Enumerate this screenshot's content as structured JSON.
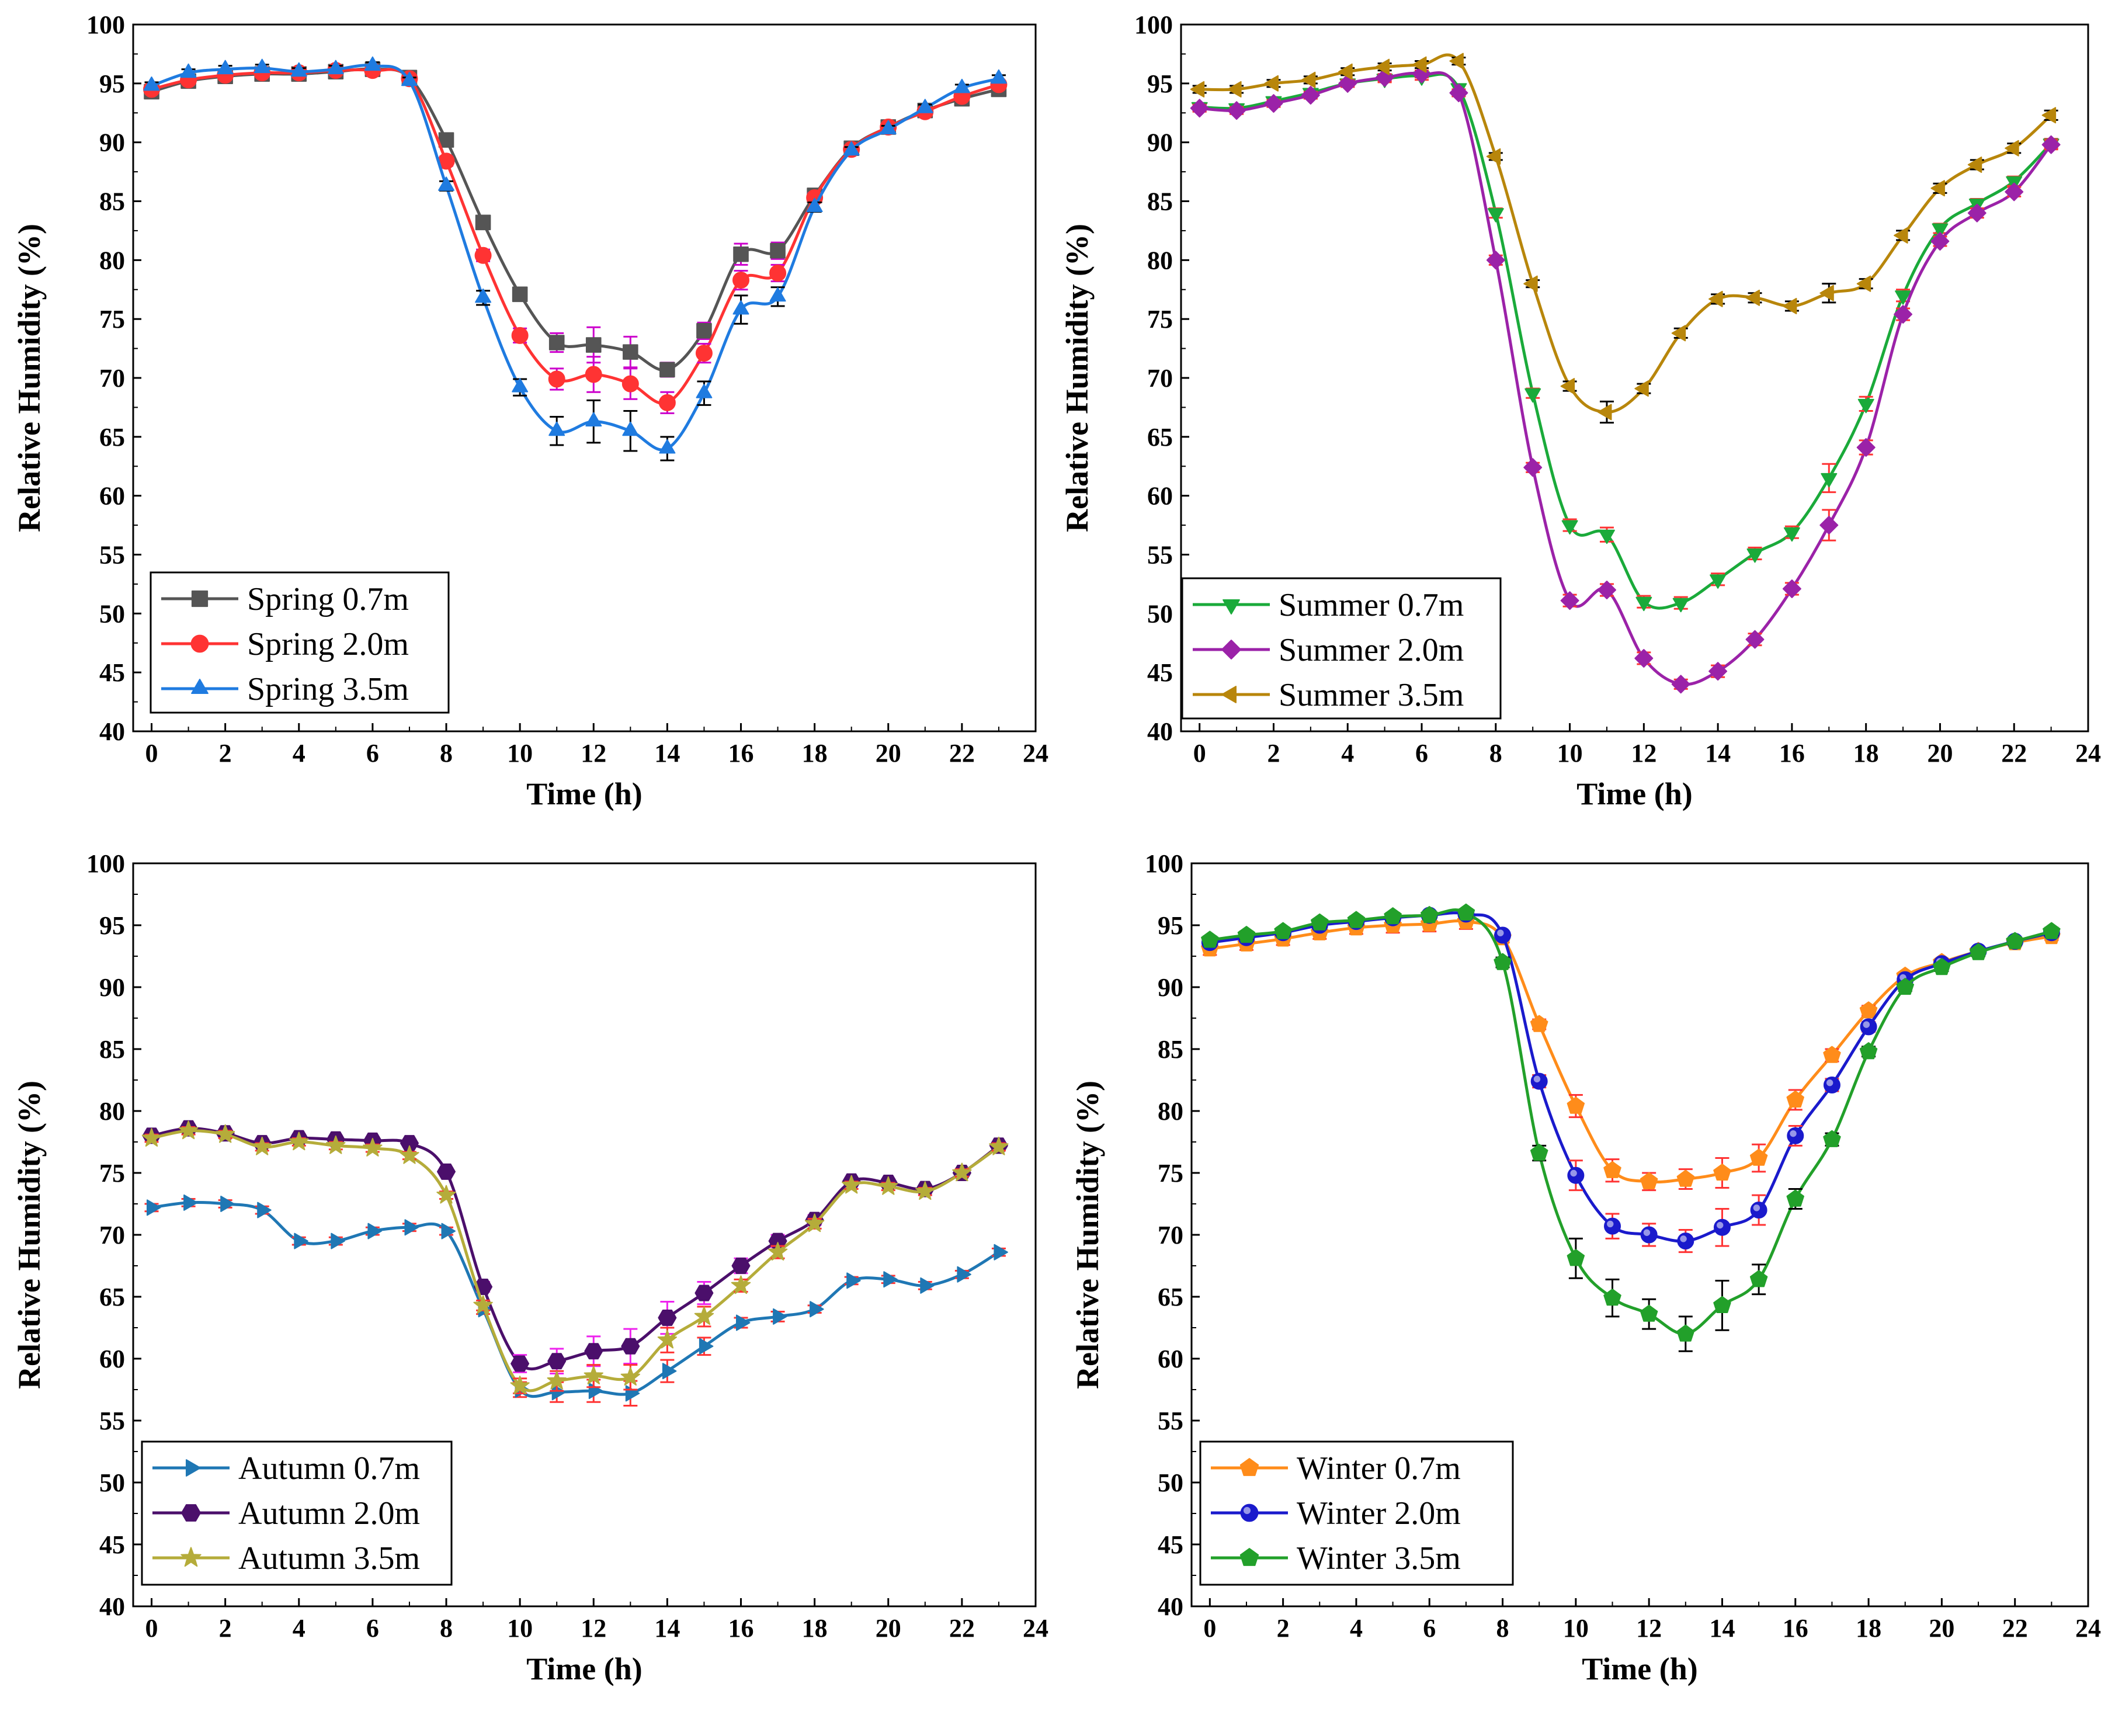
{
  "chart_data": [
    {
      "type": "line",
      "xlabel": "Time (h)",
      "ylabel": "Relative Humidity (%)",
      "xlim": [
        -0.5,
        24
      ],
      "ylim": [
        40,
        100
      ],
      "xticks": [
        "0",
        "2",
        "4",
        "6",
        "8",
        "10",
        "12",
        "14",
        "16",
        "18",
        "20",
        "22",
        "24"
      ],
      "yticks": [
        "40",
        "45",
        "50",
        "55",
        "60",
        "65",
        "70",
        "75",
        "80",
        "85",
        "90",
        "95",
        "100"
      ],
      "legend_position": "bottom-left",
      "x": [
        0,
        1,
        2,
        3,
        4,
        5,
        6,
        7,
        8,
        9,
        10,
        11,
        12,
        13,
        14,
        15,
        16,
        17,
        18,
        19,
        20,
        21,
        22,
        23
      ],
      "series": [
        {
          "name": "Spring 0.7m",
          "color": "#555555",
          "error_color": "#cc00cc",
          "marker": "square",
          "values": [
            94.3,
            95.2,
            95.6,
            95.8,
            95.8,
            96.0,
            96.2,
            95.5,
            90.2,
            83.2,
            77.1,
            73.0,
            72.8,
            72.2,
            70.7,
            74.0,
            80.5,
            80.8,
            85.5,
            89.5,
            91.3,
            92.7,
            93.7,
            94.5
          ],
          "errors": [
            0.3,
            0.3,
            0.3,
            0.3,
            0.3,
            0.3,
            0.3,
            0.3,
            0.3,
            0.4,
            0.5,
            0.8,
            1.5,
            1.3,
            0.6,
            0.7,
            0.9,
            0.7,
            0.4,
            0.3,
            0.3,
            0.3,
            0.3,
            0.3
          ]
        },
        {
          "name": "Spring 2.0m",
          "color": "#ff3333",
          "error_color": "#cc00cc",
          "marker": "circle",
          "values": [
            94.5,
            95.3,
            95.7,
            95.9,
            95.9,
            96.1,
            96.1,
            95.4,
            88.4,
            80.4,
            73.6,
            69.9,
            70.3,
            69.5,
            67.9,
            72.1,
            78.3,
            78.9,
            85.3,
            89.4,
            91.3,
            92.6,
            93.9,
            94.9
          ],
          "errors": [
            0.3,
            0.3,
            0.3,
            0.3,
            0.3,
            0.3,
            0.3,
            0.3,
            0.4,
            0.5,
            0.6,
            0.9,
            1.5,
            1.3,
            0.9,
            0.8,
            0.8,
            0.7,
            0.4,
            0.3,
            0.3,
            0.3,
            0.3,
            0.3
          ]
        },
        {
          "name": "Spring 3.5m",
          "color": "#1f7be0",
          "error_color": "#000000",
          "marker": "triangle-up",
          "values": [
            94.8,
            95.9,
            96.2,
            96.3,
            96.0,
            96.2,
            96.5,
            95.2,
            86.3,
            76.8,
            69.2,
            65.5,
            66.3,
            65.5,
            64.0,
            68.7,
            75.8,
            76.9,
            84.5,
            89.3,
            91.1,
            92.9,
            94.6,
            95.4
          ],
          "errors": [
            0.3,
            0.3,
            0.3,
            0.3,
            0.3,
            0.3,
            0.3,
            0.3,
            0.4,
            0.6,
            0.7,
            1.2,
            1.8,
            1.7,
            1.0,
            1.0,
            1.2,
            0.8,
            0.4,
            0.3,
            0.3,
            0.3,
            0.3,
            0.3
          ]
        }
      ]
    },
    {
      "type": "line",
      "xlabel": "Time (h)",
      "ylabel": "Relative Humidity (%)",
      "xlim": [
        -0.5,
        24
      ],
      "ylim": [
        40,
        100
      ],
      "xticks": [
        "0",
        "2",
        "4",
        "6",
        "8",
        "10",
        "12",
        "14",
        "16",
        "18",
        "20",
        "22",
        "24"
      ],
      "yticks": [
        "40",
        "45",
        "50",
        "55",
        "60",
        "65",
        "70",
        "75",
        "80",
        "85",
        "90",
        "95",
        "100"
      ],
      "legend_position": "bottom-left",
      "x": [
        0,
        1,
        2,
        3,
        4,
        5,
        6,
        7,
        8,
        9,
        10,
        11,
        12,
        13,
        14,
        15,
        16,
        17,
        18,
        19,
        20,
        21,
        22,
        23
      ],
      "series": [
        {
          "name": "Summer 0.7m",
          "color": "#1aaa3a",
          "error_color": "#ff3333",
          "marker": "triangle-down",
          "values": [
            93.0,
            92.9,
            93.5,
            94.2,
            95.0,
            95.4,
            95.6,
            94.6,
            84.0,
            68.7,
            57.5,
            56.7,
            51.0,
            50.9,
            52.9,
            55.1,
            56.9,
            61.5,
            67.8,
            77.0,
            82.7,
            84.8,
            86.7,
            89.9
          ],
          "errors": [
            0.3,
            0.3,
            0.3,
            0.3,
            0.3,
            0.3,
            0.3,
            0.3,
            0.4,
            0.4,
            0.5,
            0.6,
            0.5,
            0.5,
            0.5,
            0.5,
            0.5,
            1.2,
            0.6,
            0.5,
            0.4,
            0.4,
            0.4,
            0.4
          ]
        },
        {
          "name": "Summer 2.0m",
          "color": "#9b22a8",
          "error_color": "#ff3333",
          "marker": "diamond",
          "values": [
            92.9,
            92.7,
            93.3,
            94.0,
            95.0,
            95.5,
            95.8,
            94.2,
            80.0,
            62.4,
            51.1,
            52.0,
            46.2,
            44.0,
            45.1,
            47.8,
            52.1,
            57.5,
            64.1,
            75.4,
            81.6,
            84.0,
            85.8,
            89.8
          ],
          "errors": [
            0.3,
            0.3,
            0.3,
            0.3,
            0.3,
            0.3,
            0.3,
            0.3,
            0.4,
            0.4,
            0.5,
            0.5,
            0.5,
            0.4,
            0.5,
            0.5,
            0.5,
            1.3,
            0.6,
            0.5,
            0.4,
            0.4,
            0.4,
            0.4
          ]
        },
        {
          "name": "Summer 3.5m",
          "color": "#b8860b",
          "error_color": "#000000",
          "marker": "triangle-left",
          "values": [
            94.5,
            94.5,
            95.0,
            95.3,
            96.0,
            96.4,
            96.6,
            96.9,
            88.8,
            78.0,
            69.3,
            67.1,
            69.1,
            73.8,
            76.7,
            76.8,
            76.1,
            77.2,
            78.0,
            82.1,
            86.1,
            88.1,
            89.5,
            92.3
          ],
          "errors": [
            0.3,
            0.3,
            0.3,
            0.3,
            0.3,
            0.3,
            0.3,
            0.3,
            0.3,
            0.3,
            0.4,
            0.9,
            0.4,
            0.4,
            0.4,
            0.4,
            0.4,
            0.8,
            0.4,
            0.4,
            0.4,
            0.4,
            0.4,
            0.4
          ]
        }
      ]
    },
    {
      "type": "line",
      "xlabel": "Time (h)",
      "ylabel": "Relative Humidity (%)",
      "xlim": [
        -0.5,
        24
      ],
      "ylim": [
        40,
        100
      ],
      "xticks": [
        "0",
        "2",
        "4",
        "6",
        "8",
        "10",
        "12",
        "14",
        "16",
        "18",
        "20",
        "22",
        "24"
      ],
      "yticks": [
        "40",
        "45",
        "50",
        "55",
        "60",
        "65",
        "70",
        "75",
        "80",
        "85",
        "90",
        "95",
        "100"
      ],
      "legend_position": "bottom-left",
      "x": [
        0,
        1,
        2,
        3,
        4,
        5,
        6,
        7,
        8,
        9,
        10,
        11,
        12,
        13,
        14,
        15,
        16,
        17,
        18,
        19,
        20,
        21,
        22,
        23
      ],
      "series": [
        {
          "name": "Autumn 0.7m",
          "color": "#1f77b4",
          "error_color": "#ff3333",
          "marker": "triangle-right",
          "values": [
            72.2,
            72.6,
            72.5,
            72.0,
            69.5,
            69.5,
            70.3,
            70.6,
            70.3,
            64.0,
            57.5,
            57.3,
            57.4,
            57.2,
            59.0,
            61.0,
            62.9,
            63.4,
            64.0,
            66.3,
            66.4,
            65.9,
            66.8,
            68.6
          ],
          "errors": [
            0.3,
            0.3,
            0.3,
            0.3,
            0.3,
            0.3,
            0.3,
            0.3,
            0.3,
            0.4,
            0.6,
            0.8,
            0.9,
            1.0,
            0.9,
            0.7,
            0.4,
            0.4,
            0.3,
            0.3,
            0.3,
            0.3,
            0.3,
            0.3
          ]
        },
        {
          "name": "Autumn 2.0m",
          "color": "#4b0f6b",
          "error_color": "#ee22ee",
          "marker": "hexagon",
          "values": [
            78.0,
            78.6,
            78.2,
            77.4,
            77.8,
            77.7,
            77.6,
            77.4,
            75.1,
            65.8,
            59.6,
            59.8,
            60.6,
            61.0,
            63.3,
            65.3,
            67.5,
            69.5,
            71.2,
            74.3,
            74.2,
            73.7,
            75.0,
            77.2
          ],
          "errors": [
            0.3,
            0.3,
            0.3,
            0.3,
            0.3,
            0.3,
            0.3,
            0.3,
            0.3,
            0.4,
            0.7,
            1.0,
            1.2,
            1.4,
            1.3,
            0.9,
            0.6,
            0.5,
            0.4,
            0.3,
            0.3,
            0.3,
            0.3,
            0.3
          ]
        },
        {
          "name": "Autumn 3.5m",
          "color": "#b5ac3a",
          "error_color": "#ff3333",
          "marker": "star",
          "values": [
            77.8,
            78.4,
            78.1,
            77.1,
            77.5,
            77.2,
            77.0,
            76.4,
            73.2,
            64.3,
            57.8,
            58.2,
            58.6,
            58.5,
            61.5,
            63.4,
            65.9,
            68.6,
            70.9,
            74.0,
            73.9,
            73.5,
            75.0,
            77.1
          ],
          "errors": [
            0.3,
            0.3,
            0.3,
            0.3,
            0.3,
            0.3,
            0.3,
            0.3,
            0.3,
            0.4,
            0.6,
            0.8,
            0.9,
            1.0,
            1.0,
            0.8,
            0.5,
            0.5,
            0.4,
            0.3,
            0.3,
            0.3,
            0.3,
            0.3
          ]
        }
      ]
    },
    {
      "type": "line",
      "xlabel": "Time (h)",
      "ylabel": "Relative Humidity (%)",
      "xlim": [
        -0.5,
        24
      ],
      "ylim": [
        40,
        100
      ],
      "xticks": [
        "0",
        "2",
        "4",
        "6",
        "8",
        "10",
        "12",
        "14",
        "16",
        "18",
        "20",
        "22",
        "24"
      ],
      "yticks": [
        "40",
        "45",
        "50",
        "55",
        "60",
        "65",
        "70",
        "75",
        "80",
        "85",
        "90",
        "95",
        "100"
      ],
      "legend_position": "bottom-left",
      "x": [
        0,
        1,
        2,
        3,
        4,
        5,
        6,
        7,
        8,
        9,
        10,
        11,
        12,
        13,
        14,
        15,
        16,
        17,
        18,
        19,
        20,
        21,
        22,
        23
      ],
      "series": [
        {
          "name": "Winter 0.7m",
          "color": "#ff8c1a",
          "error_color": "#ff3333",
          "marker": "pentagon",
          "values": [
            93.1,
            93.5,
            93.9,
            94.4,
            94.8,
            95.0,
            95.1,
            95.3,
            94.0,
            87.0,
            80.4,
            75.2,
            74.3,
            74.5,
            75.0,
            76.2,
            80.9,
            84.5,
            88.1,
            90.9,
            92.0,
            92.9,
            93.6,
            94.1
          ],
          "errors": [
            0.5,
            0.5,
            0.5,
            0.5,
            0.5,
            0.6,
            0.6,
            0.6,
            0.4,
            0.4,
            0.9,
            0.9,
            0.7,
            0.8,
            1.2,
            1.1,
            0.8,
            0.5,
            0.4,
            0.3,
            0.3,
            0.3,
            0.3,
            0.3
          ]
        },
        {
          "name": "Winter 2.0m",
          "color": "#1a1acc",
          "error_color": "#ff3333",
          "marker": "circle-shaded",
          "values": [
            93.6,
            94.0,
            94.4,
            95.0,
            95.3,
            95.6,
            95.8,
            95.9,
            94.2,
            82.4,
            74.8,
            70.7,
            70.0,
            69.5,
            70.6,
            72.0,
            78.0,
            82.1,
            86.8,
            90.6,
            91.9,
            92.9,
            93.7,
            94.4
          ],
          "errors": [
            0.3,
            0.3,
            0.3,
            0.3,
            0.3,
            0.3,
            0.3,
            0.3,
            0.3,
            0.5,
            1.2,
            1.0,
            0.9,
            0.9,
            1.5,
            1.2,
            0.8,
            0.5,
            0.4,
            0.3,
            0.3,
            0.3,
            0.3,
            0.3
          ]
        },
        {
          "name": "Winter 3.5m",
          "color": "#22a02a",
          "error_color": "#000000",
          "marker": "pentagon",
          "values": [
            93.8,
            94.2,
            94.5,
            95.2,
            95.4,
            95.7,
            95.8,
            96.0,
            92.0,
            76.6,
            68.1,
            64.9,
            63.6,
            62.0,
            64.3,
            66.4,
            72.9,
            77.7,
            84.8,
            90.0,
            91.6,
            92.8,
            93.7,
            94.5
          ],
          "errors": [
            0.3,
            0.3,
            0.3,
            0.3,
            0.3,
            0.3,
            0.3,
            0.3,
            0.4,
            0.6,
            1.6,
            1.5,
            1.2,
            1.4,
            2.0,
            1.2,
            0.8,
            0.5,
            0.4,
            0.3,
            0.3,
            0.3,
            0.3,
            0.3
          ]
        }
      ]
    }
  ]
}
